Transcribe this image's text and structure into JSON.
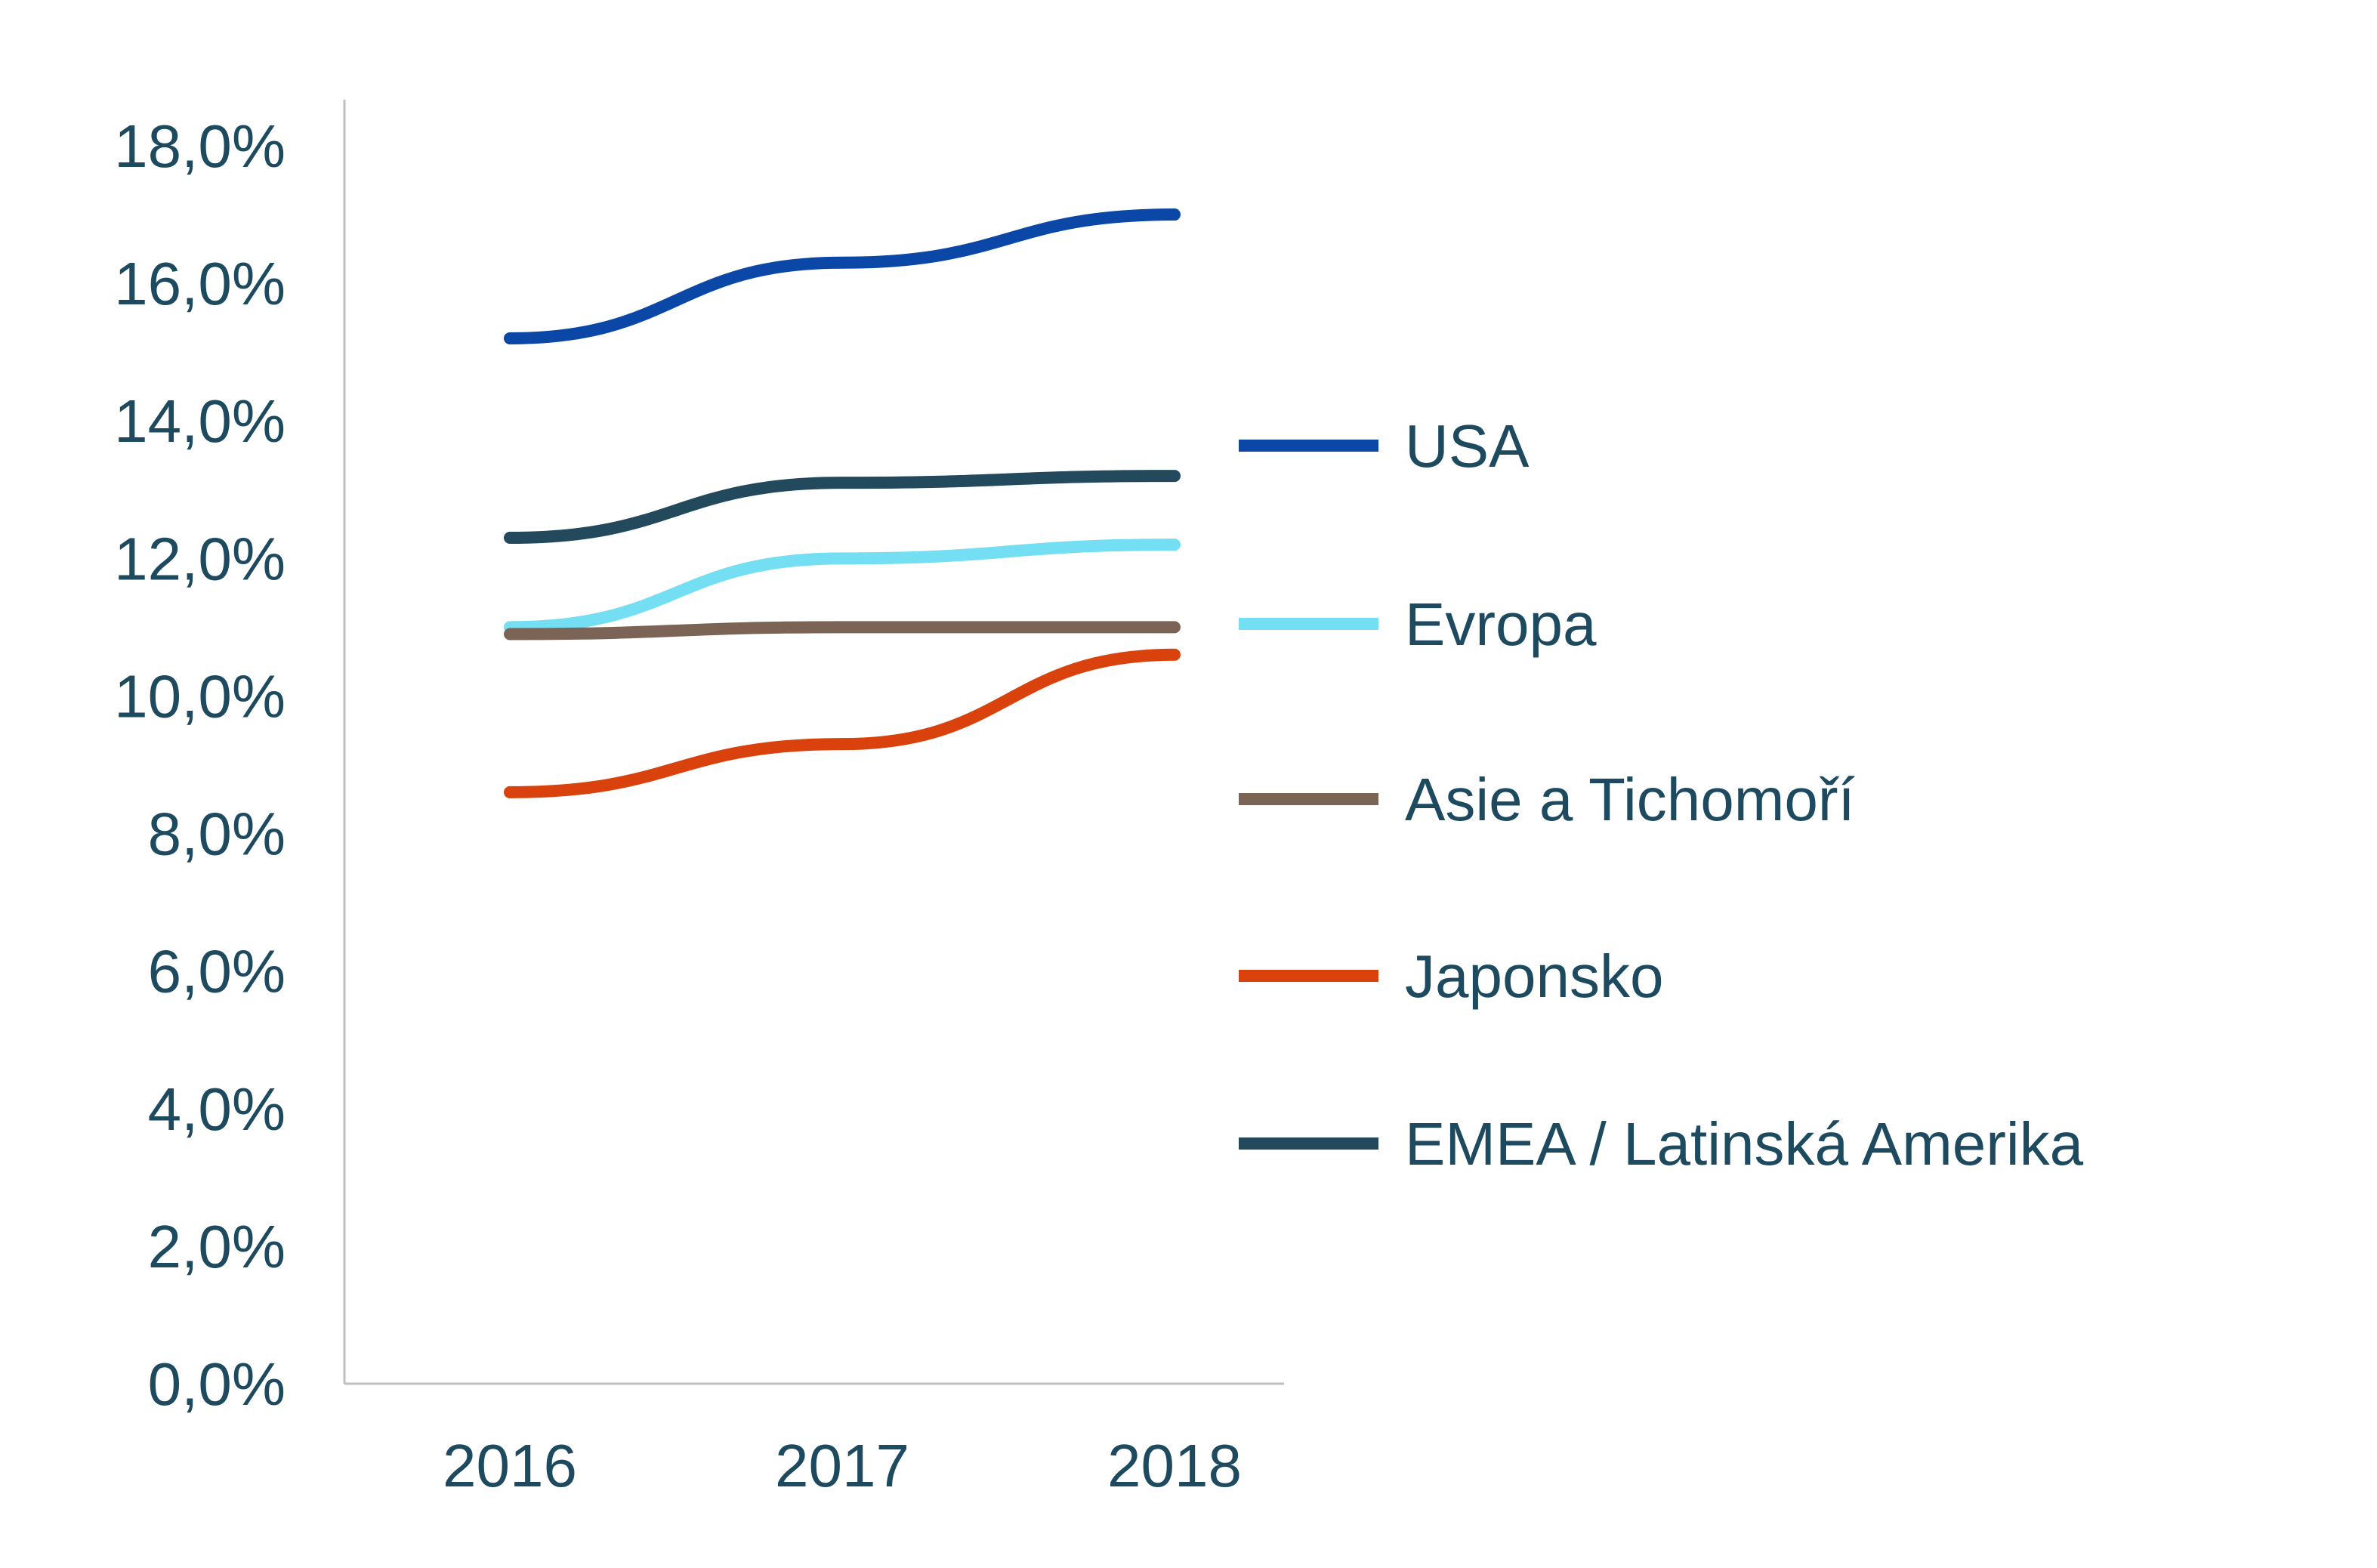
{
  "chart_data": {
    "type": "line",
    "categories": [
      "2016",
      "2017",
      "2018"
    ],
    "ylim": [
      0,
      18
    ],
    "y_ticks": [
      0,
      2,
      4,
      6,
      8,
      10,
      12,
      14,
      16,
      18
    ],
    "y_tick_labels": [
      "0,0%",
      "2,0%",
      "4,0%",
      "6,0%",
      "8,0%",
      "10,0%",
      "12,0%",
      "14,0%",
      "16,0%",
      "18,0%"
    ],
    "title": "",
    "xlabel": "",
    "ylabel": "",
    "grid": false,
    "legend_position": "right",
    "series": [
      {
        "name": "USA",
        "color": "#0a47a7",
        "values": [
          15.2,
          16.3,
          17.0
        ]
      },
      {
        "name": "Evropa",
        "color": "#74def2",
        "values": [
          11.0,
          12.0,
          12.2
        ]
      },
      {
        "name": "Asie a Tichomoří",
        "color": "#7b6456",
        "values": [
          10.9,
          11.0,
          11.0
        ]
      },
      {
        "name": "Japonsko",
        "color": "#d9420c",
        "values": [
          8.6,
          9.3,
          10.6
        ]
      },
      {
        "name": "EMEA / Latinská Amerika",
        "color": "#23495d",
        "values": [
          12.3,
          13.1,
          13.2
        ]
      }
    ]
  }
}
